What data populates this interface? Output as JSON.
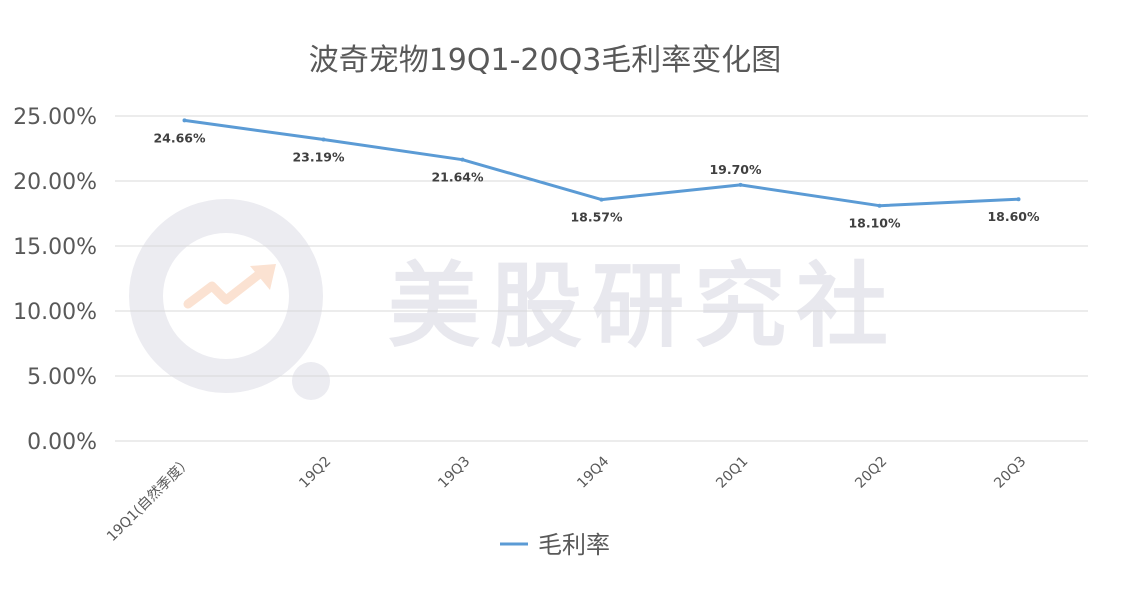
{
  "watermark": {
    "text": "美股研究社"
  },
  "chart_data": {
    "type": "line",
    "title": "波奇宠物19Q1-20Q3毛利率变化图",
    "categories": [
      "19Q1(自然季度）",
      "19Q2",
      "19Q3",
      "19Q4",
      "20Q1",
      "20Q2",
      "20Q3"
    ],
    "y_ticks": [
      "0.00%",
      "5.00%",
      "10.00%",
      "15.00%",
      "20.00%",
      "25.00%"
    ],
    "ylim": [
      0,
      25
    ],
    "grid": true,
    "legend_position": "bottom",
    "series": [
      {
        "name": "毛利率",
        "color": "#5b9bd5",
        "values": [
          24.66,
          23.19,
          21.64,
          18.57,
          19.7,
          18.1,
          18.6
        ],
        "labels": [
          "24.66%",
          "23.19%",
          "21.64%",
          "18.57%",
          "19.70%",
          "18.10%",
          "18.60%"
        ]
      }
    ]
  }
}
